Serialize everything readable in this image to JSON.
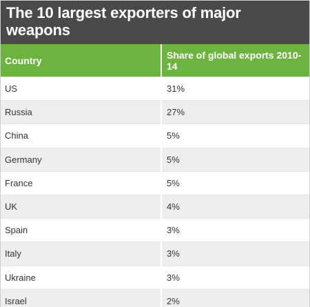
{
  "title": "The 10 largest exporters of major weapons",
  "colors": {
    "title_bg": "#4a4a4a",
    "header_bg": "#6db33f",
    "stripe_bg": "#eeeeee"
  },
  "chart_data": {
    "type": "table",
    "title": "The 10 largest exporters of major weapons",
    "columns": [
      "Country",
      "Share of global exports 2010-14"
    ],
    "rows": [
      {
        "country": "US",
        "share": "31%"
      },
      {
        "country": "Russia",
        "share": "27%"
      },
      {
        "country": "China",
        "share": "5%"
      },
      {
        "country": "Germany",
        "share": "5%"
      },
      {
        "country": "France",
        "share": "5%"
      },
      {
        "country": "UK",
        "share": "4%"
      },
      {
        "country": "Spain",
        "share": "3%"
      },
      {
        "country": "Italy",
        "share": "3%"
      },
      {
        "country": "Ukraine",
        "share": "3%"
      },
      {
        "country": "Israel",
        "share": "2%"
      }
    ],
    "values": [
      31,
      27,
      5,
      5,
      5,
      4,
      3,
      3,
      3,
      2
    ],
    "categories": [
      "US",
      "Russia",
      "China",
      "Germany",
      "France",
      "UK",
      "Spain",
      "Italy",
      "Ukraine",
      "Israel"
    ]
  }
}
